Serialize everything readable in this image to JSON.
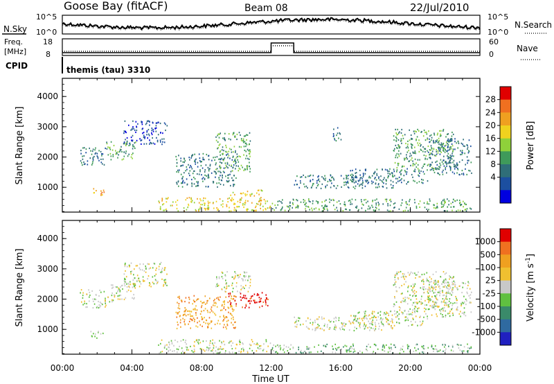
{
  "header": {
    "station": "Goose Bay (fitACF)",
    "beam": "Beam 08",
    "date": "22/Jul/2010",
    "cpid_value": "themis (tau) 3310"
  },
  "side_labels": {
    "nsky": "N.Sky",
    "nsearch": "N.Search",
    "freq_line1": "Freq.",
    "freq_line2": "[MHz]",
    "cpid": "CPID",
    "nave": "Nave"
  },
  "noise_panel": {
    "left_ticks": [
      "10^5",
      "10^0"
    ],
    "right_ticks": [
      "10^5",
      "10^0"
    ]
  },
  "freq_panel": {
    "left_ticks": [
      "18",
      "8"
    ],
    "right_ticks": [
      "60",
      "0"
    ]
  },
  "time_axis": {
    "ticks": [
      "00:00",
      "04:00",
      "08:00",
      "12:00",
      "16:00",
      "20:00",
      "00:00"
    ],
    "label": "Time UT"
  },
  "chart_data": [
    {
      "type": "heatmap",
      "title": "",
      "xlabel": "Time UT",
      "ylabel": "Slant Range [km]",
      "xlim_hours": [
        0,
        24
      ],
      "ylim_km": [
        180,
        4600
      ],
      "yticks": [
        1000,
        2000,
        3000,
        4000
      ],
      "colorbar": {
        "label": "Power [dB]",
        "ticks": [
          "4",
          "8",
          "12",
          "16",
          "20",
          "24",
          "28"
        ],
        "colors": [
          "#0000e0",
          "#1c4fa0",
          "#2f6e78",
          "#3f9a5a",
          "#8fd13a",
          "#f0d21e",
          "#f0a020",
          "#f07020",
          "#e00000"
        ]
      },
      "regions": [
        {
          "t0": 1.0,
          "t1": 2.5,
          "r0": 1700,
          "r1": 2300,
          "level": 2
        },
        {
          "t0": 1.6,
          "t1": 2.4,
          "r0": 700,
          "r1": 950,
          "level": 6
        },
        {
          "t0": 2.5,
          "t1": 4.2,
          "r0": 1900,
          "r1": 2500,
          "level": 3
        },
        {
          "t0": 3.5,
          "t1": 6.0,
          "r0": 2400,
          "r1": 3200,
          "level": 1
        },
        {
          "t0": 5.5,
          "t1": 12.0,
          "r0": 200,
          "r1": 650,
          "level": 5
        },
        {
          "t0": 6.5,
          "t1": 10.0,
          "r0": 1000,
          "r1": 2100,
          "level": 2
        },
        {
          "t0": 8.8,
          "t1": 10.8,
          "r0": 1500,
          "r1": 2800,
          "level": 3
        },
        {
          "t0": 9.5,
          "t1": 11.5,
          "r0": 700,
          "r1": 900,
          "level": 5
        },
        {
          "t0": 12.0,
          "t1": 23.5,
          "r0": 200,
          "r1": 600,
          "level": 3
        },
        {
          "t0": 13.3,
          "t1": 19.0,
          "r0": 950,
          "r1": 1400,
          "level": 2
        },
        {
          "t0": 15.5,
          "t1": 16.0,
          "r0": 2500,
          "r1": 3000,
          "level": 2
        },
        {
          "t0": 16.5,
          "t1": 21.0,
          "r0": 1100,
          "r1": 1600,
          "level": 2
        },
        {
          "t0": 19.0,
          "t1": 22.5,
          "r0": 1600,
          "r1": 2900,
          "level": 3
        },
        {
          "t0": 21.0,
          "t1": 23.5,
          "r0": 1400,
          "r1": 2600,
          "level": 2
        }
      ]
    },
    {
      "type": "heatmap",
      "title": "",
      "xlabel": "Time UT",
      "ylabel": "Slant Range [km]",
      "xlim_hours": [
        0,
        24
      ],
      "ylim_km": [
        180,
        4600
      ],
      "yticks": [
        1000,
        2000,
        3000,
        4000
      ],
      "colorbar": {
        "label": "Velocity [m s^-1]",
        "ticks": [
          "1000",
          "500",
          "100",
          "25",
          "-25",
          "-100",
          "-500",
          "-1000"
        ],
        "colors": [
          "#2020c0",
          "#2f6aa0",
          "#3a8a6a",
          "#60c040",
          "#c8c8c8",
          "#f0c030",
          "#f0a020",
          "#f07020",
          "#e00000"
        ]
      },
      "regions": [
        {
          "t0": 1.0,
          "t1": 2.5,
          "r0": 1700,
          "r1": 2300,
          "level": 4
        },
        {
          "t0": 1.6,
          "t1": 2.4,
          "r0": 700,
          "r1": 950,
          "level": 3
        },
        {
          "t0": 2.5,
          "t1": 4.2,
          "r0": 1900,
          "r1": 2500,
          "level": 4
        },
        {
          "t0": 3.5,
          "t1": 6.0,
          "r0": 2400,
          "r1": 3200,
          "level": 4
        },
        {
          "t0": 5.5,
          "t1": 12.0,
          "r0": 200,
          "r1": 650,
          "level": 4
        },
        {
          "t0": 6.5,
          "t1": 10.0,
          "r0": 1000,
          "r1": 2100,
          "level": 6
        },
        {
          "t0": 9.5,
          "t1": 11.8,
          "r0": 1700,
          "r1": 2200,
          "level": 8
        },
        {
          "t0": 8.8,
          "t1": 10.8,
          "r0": 2200,
          "r1": 2900,
          "level": 4
        },
        {
          "t0": 12.0,
          "t1": 23.5,
          "r0": 200,
          "r1": 500,
          "level": 3
        },
        {
          "t0": 13.3,
          "t1": 19.0,
          "r0": 950,
          "r1": 1400,
          "level": 4
        },
        {
          "t0": 16.5,
          "t1": 21.0,
          "r0": 1100,
          "r1": 1600,
          "level": 4
        },
        {
          "t0": 19.0,
          "t1": 22.5,
          "r0": 1600,
          "r1": 2900,
          "level": 4
        },
        {
          "t0": 21.0,
          "t1": 23.5,
          "r0": 1400,
          "r1": 2600,
          "level": 4
        }
      ]
    }
  ]
}
